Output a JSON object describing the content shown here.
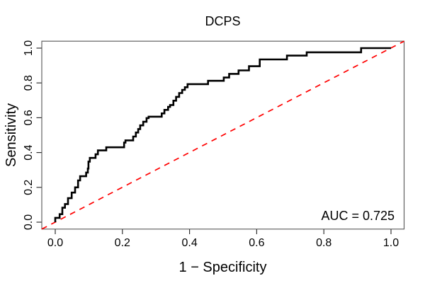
{
  "figure": {
    "title": "DCPS",
    "xlabel": "1 − Specificity",
    "ylabel": "Sensitivity",
    "auc_label": "AUC = 0.725",
    "auc_value": 0.725
  },
  "colors": {
    "curve": "#000000",
    "diagonal": "#ff0000",
    "text": "#000000",
    "frame": "#555555",
    "background": "#ffffff"
  },
  "chart_data": {
    "type": "line",
    "subtype": "roc-step-curve",
    "title": "DCPS",
    "xlabel": "1 − Specificity",
    "ylabel": "Sensitivity",
    "xlim": [
      0,
      1
    ],
    "ylim": [
      0,
      1
    ],
    "grid": false,
    "legend": "none",
    "annotations": [
      "AUC = 0.725"
    ],
    "x_ticks": [
      {
        "value": 0.0,
        "label": "0.0"
      },
      {
        "value": 0.2,
        "label": "0.2"
      },
      {
        "value": 0.4,
        "label": "0.4"
      },
      {
        "value": 0.6,
        "label": "0.6"
      },
      {
        "value": 0.8,
        "label": "0.8"
      },
      {
        "value": 1.0,
        "label": "1.0"
      }
    ],
    "y_ticks": [
      {
        "value": 0.0,
        "label": "0.0"
      },
      {
        "value": 0.2,
        "label": "0.2"
      },
      {
        "value": 0.4,
        "label": "0.4"
      },
      {
        "value": 0.6,
        "label": "0.6"
      },
      {
        "value": 0.8,
        "label": "0.8"
      },
      {
        "value": 1.0,
        "label": "1.0"
      }
    ],
    "series": [
      {
        "name": "ROC curve (DCPS)",
        "color": "#000000",
        "style": "solid",
        "interpolation": "linear-precomputed-steps",
        "points": [
          [
            0.0,
            0.0
          ],
          [
            0.0,
            0.025
          ],
          [
            0.013,
            0.025
          ],
          [
            0.013,
            0.046
          ],
          [
            0.021,
            0.046
          ],
          [
            0.021,
            0.083
          ],
          [
            0.029,
            0.083
          ],
          [
            0.029,
            0.104
          ],
          [
            0.038,
            0.104
          ],
          [
            0.038,
            0.138
          ],
          [
            0.049,
            0.138
          ],
          [
            0.049,
            0.17
          ],
          [
            0.059,
            0.17
          ],
          [
            0.059,
            0.2
          ],
          [
            0.068,
            0.2
          ],
          [
            0.068,
            0.24
          ],
          [
            0.074,
            0.24
          ],
          [
            0.074,
            0.264
          ],
          [
            0.092,
            0.264
          ],
          [
            0.092,
            0.285
          ],
          [
            0.097,
            0.285
          ],
          [
            0.097,
            0.308
          ],
          [
            0.099,
            0.308
          ],
          [
            0.099,
            0.348
          ],
          [
            0.103,
            0.348
          ],
          [
            0.103,
            0.369
          ],
          [
            0.12,
            0.369
          ],
          [
            0.12,
            0.39
          ],
          [
            0.127,
            0.39
          ],
          [
            0.127,
            0.412
          ],
          [
            0.152,
            0.412
          ],
          [
            0.152,
            0.43
          ],
          [
            0.205,
            0.43
          ],
          [
            0.205,
            0.457
          ],
          [
            0.209,
            0.457
          ],
          [
            0.209,
            0.47
          ],
          [
            0.232,
            0.47
          ],
          [
            0.232,
            0.492
          ],
          [
            0.24,
            0.492
          ],
          [
            0.24,
            0.515
          ],
          [
            0.247,
            0.515
          ],
          [
            0.247,
            0.535
          ],
          [
            0.253,
            0.535
          ],
          [
            0.253,
            0.556
          ],
          [
            0.262,
            0.556
          ],
          [
            0.262,
            0.577
          ],
          [
            0.272,
            0.577
          ],
          [
            0.272,
            0.598
          ],
          [
            0.278,
            0.598
          ],
          [
            0.278,
            0.606
          ],
          [
            0.317,
            0.606
          ],
          [
            0.317,
            0.625
          ],
          [
            0.325,
            0.625
          ],
          [
            0.325,
            0.645
          ],
          [
            0.336,
            0.645
          ],
          [
            0.336,
            0.662
          ],
          [
            0.342,
            0.662
          ],
          [
            0.342,
            0.673
          ],
          [
            0.352,
            0.673
          ],
          [
            0.352,
            0.698
          ],
          [
            0.36,
            0.698
          ],
          [
            0.36,
            0.72
          ],
          [
            0.369,
            0.72
          ],
          [
            0.369,
            0.742
          ],
          [
            0.378,
            0.742
          ],
          [
            0.378,
            0.76
          ],
          [
            0.386,
            0.76
          ],
          [
            0.386,
            0.775
          ],
          [
            0.394,
            0.775
          ],
          [
            0.394,
            0.793
          ],
          [
            0.455,
            0.793
          ],
          [
            0.455,
            0.812
          ],
          [
            0.502,
            0.812
          ],
          [
            0.502,
            0.831
          ],
          [
            0.518,
            0.831
          ],
          [
            0.518,
            0.852
          ],
          [
            0.546,
            0.852
          ],
          [
            0.546,
            0.872
          ],
          [
            0.577,
            0.872
          ],
          [
            0.577,
            0.896
          ],
          [
            0.609,
            0.896
          ],
          [
            0.609,
            0.935
          ],
          [
            0.69,
            0.935
          ],
          [
            0.69,
            0.957
          ],
          [
            0.749,
            0.957
          ],
          [
            0.749,
            0.976
          ],
          [
            0.911,
            0.976
          ],
          [
            0.911,
            1.0
          ],
          [
            1.0,
            1.0
          ]
        ]
      },
      {
        "name": "Chance diagonal",
        "color": "#ff0000",
        "style": "dashed",
        "points": [
          [
            0,
            0
          ],
          [
            1,
            1
          ]
        ]
      }
    ]
  }
}
